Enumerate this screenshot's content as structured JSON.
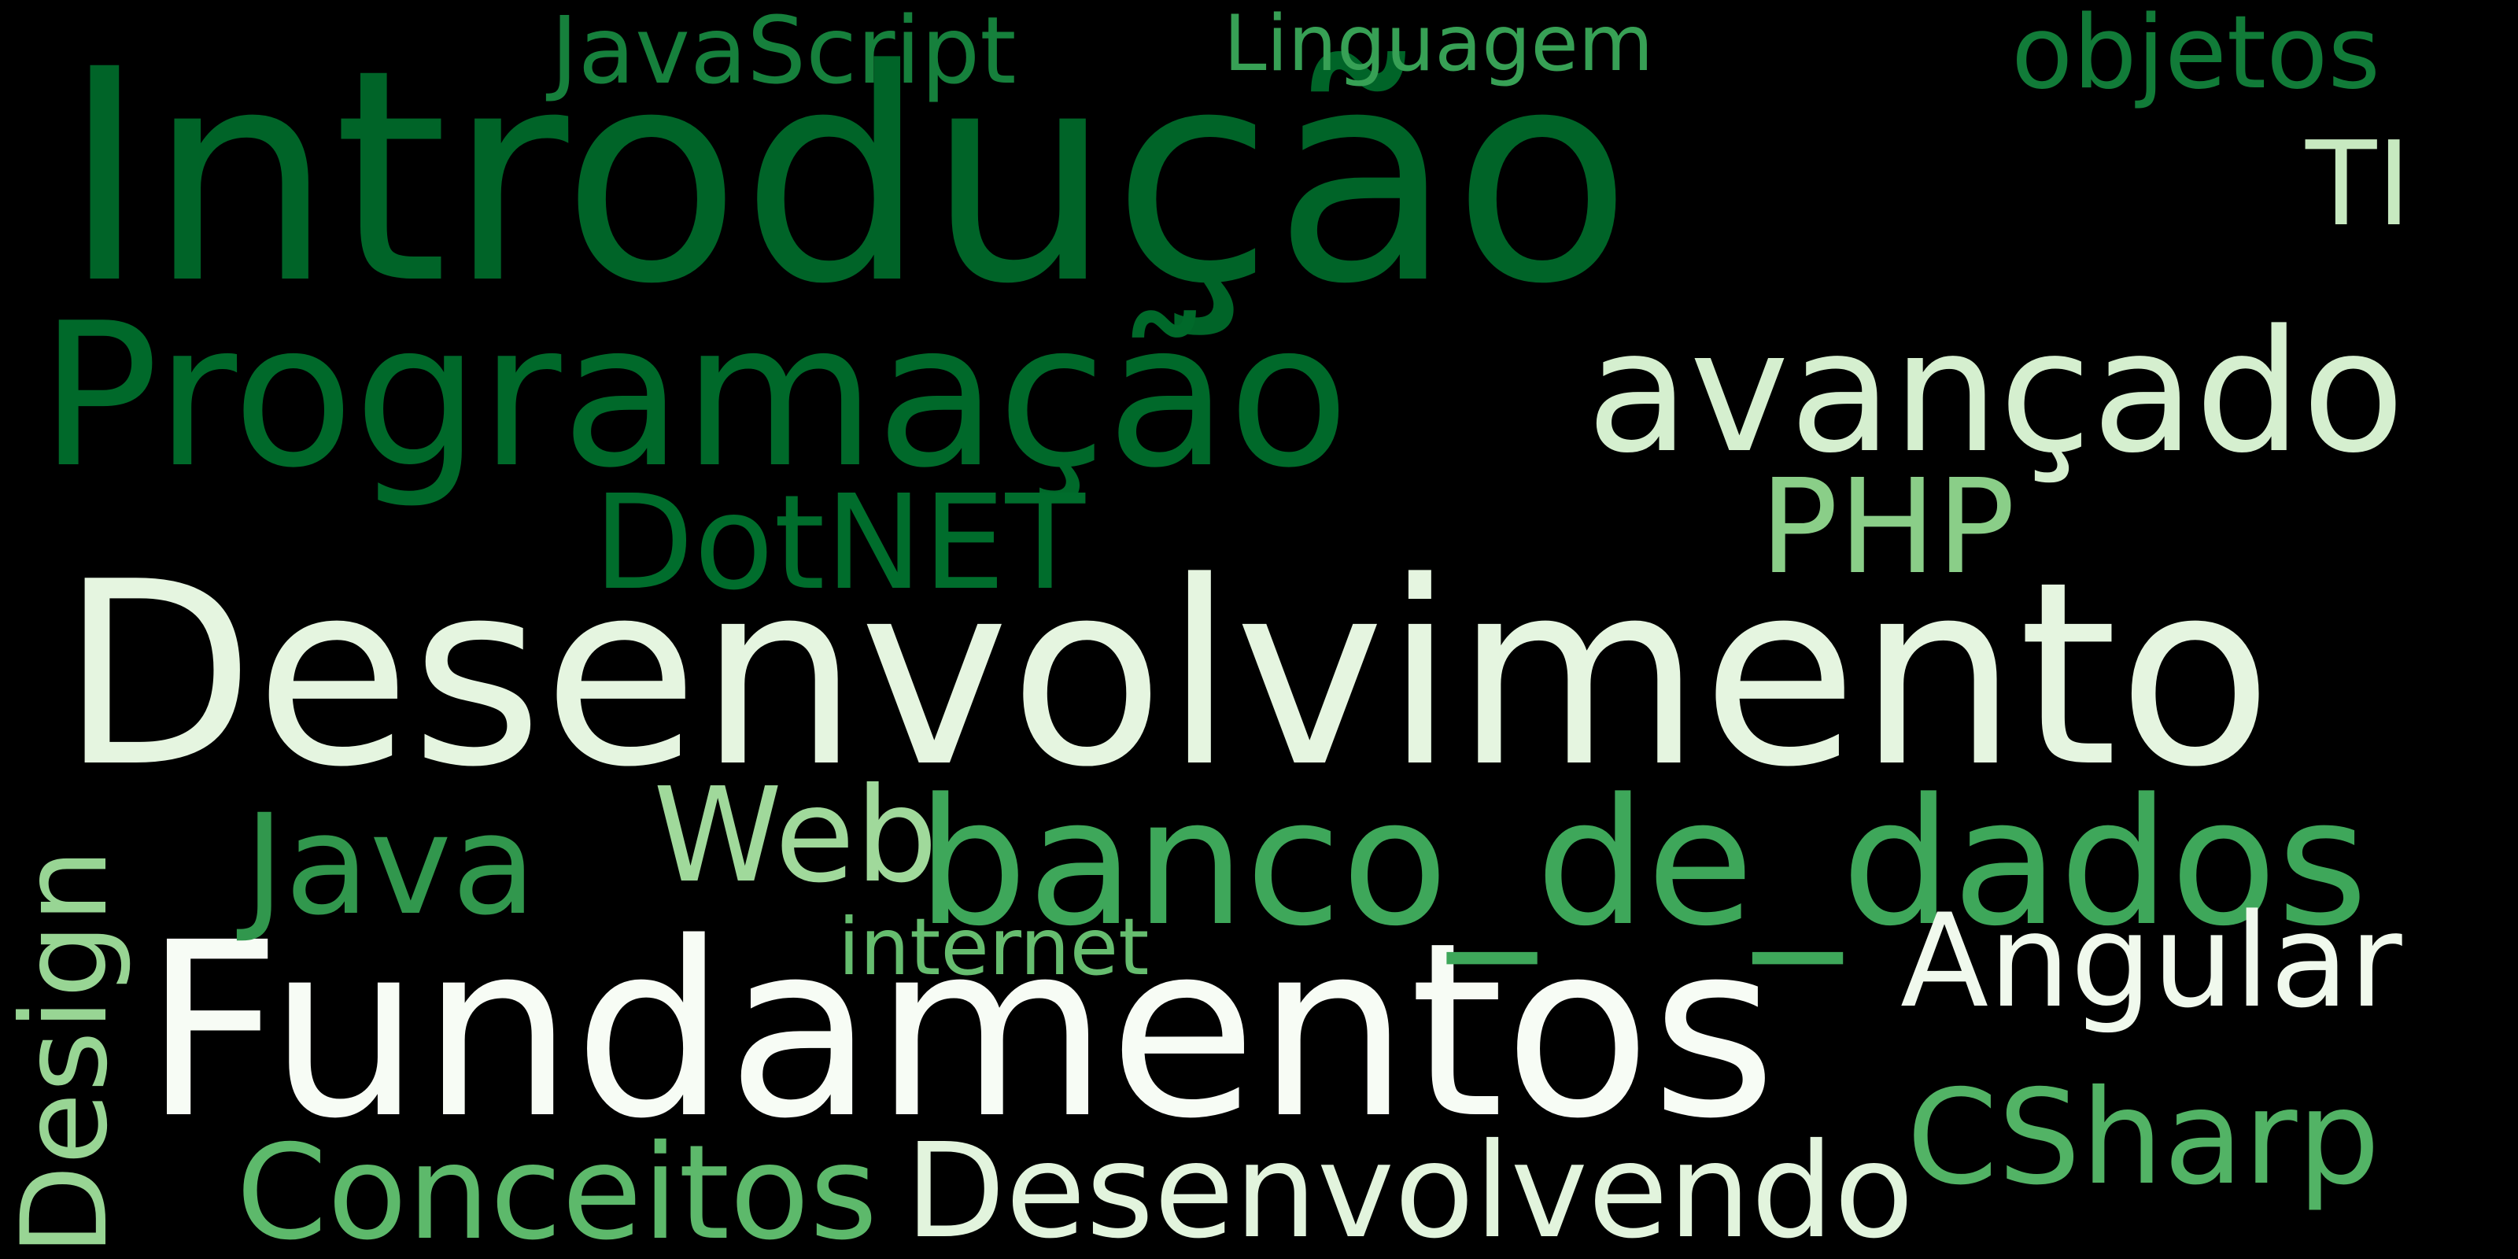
{
  "background": "#000000",
  "words": [
    {
      "id": "introducao",
      "text": "Introdução",
      "color": "#006428"
    },
    {
      "id": "programacao",
      "text": "Programação",
      "color": "#00692a"
    },
    {
      "id": "avancado",
      "text": "avançado",
      "color": "#d5efcf"
    },
    {
      "id": "desenvolvimento",
      "text": "Desenvolvimento",
      "color": "#e5f5e0"
    },
    {
      "id": "fundamentos",
      "text": "Fundamentos",
      "color": "#f7fcf5"
    },
    {
      "id": "banco-de-dados",
      "text": "banco_de_dados",
      "color": "#3ea75a"
    },
    {
      "id": "javascript",
      "text": "JavaScript",
      "color": "#16803c"
    },
    {
      "id": "linguagem",
      "text": "Linguagem",
      "color": "#37a055"
    },
    {
      "id": "objetos",
      "text": "objetos",
      "color": "#117b38"
    },
    {
      "id": "ti",
      "text": "TI",
      "color": "#c7e9c0"
    },
    {
      "id": "dotnet",
      "text": "DotNET",
      "color": "#006d2c"
    },
    {
      "id": "php",
      "text": "PHP",
      "color": "#8ace88"
    },
    {
      "id": "java",
      "text": "Java",
      "color": "#31974d"
    },
    {
      "id": "web",
      "text": "Web",
      "color": "#a0d99b"
    },
    {
      "id": "design",
      "text": "Design",
      "color": "#98d594"
    },
    {
      "id": "internet",
      "text": "internet",
      "color": "#66bd6f"
    },
    {
      "id": "angular",
      "text": "Angular",
      "color": "#f0f9ed"
    },
    {
      "id": "csharp",
      "text": "CSharp",
      "color": "#52b365"
    },
    {
      "id": "conceitos",
      "text": "Conceitos",
      "color": "#5db96b"
    },
    {
      "id": "desenvolvendo",
      "text": "Desenvolvendo",
      "color": "#e2f4dd"
    }
  ]
}
